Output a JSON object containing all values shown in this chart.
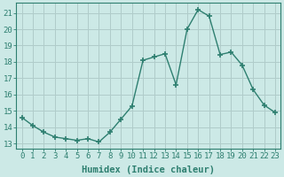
{
  "x": [
    0,
    1,
    2,
    3,
    4,
    5,
    6,
    7,
    8,
    9,
    10,
    11,
    12,
    13,
    14,
    15,
    16,
    17,
    18,
    19,
    20,
    21,
    22,
    23
  ],
  "y": [
    14.6,
    14.1,
    13.7,
    13.4,
    13.3,
    13.2,
    13.3,
    13.1,
    13.7,
    14.5,
    15.3,
    18.1,
    18.3,
    18.5,
    16.6,
    20.0,
    21.2,
    20.8,
    18.45,
    18.6,
    17.8,
    16.3,
    15.35,
    14.9
  ],
  "line_color": "#2e7f70",
  "marker": "+",
  "marker_size": 4,
  "marker_linewidth": 1.2,
  "bg_color": "#cce9e6",
  "grid_color": "#b0ccca",
  "xlabel": "Humidex (Indice chaleur)",
  "xlim": [
    -0.5,
    23.5
  ],
  "ylim": [
    12.7,
    21.6
  ],
  "yticks": [
    13,
    14,
    15,
    16,
    17,
    18,
    19,
    20,
    21
  ],
  "xticks": [
    0,
    1,
    2,
    3,
    4,
    5,
    6,
    7,
    8,
    9,
    10,
    11,
    12,
    13,
    14,
    15,
    16,
    17,
    18,
    19,
    20,
    21,
    22,
    23
  ],
  "xtick_labels": [
    "0",
    "1",
    "2",
    "3",
    "4",
    "5",
    "6",
    "7",
    "8",
    "9",
    "10",
    "11",
    "12",
    "13",
    "14",
    "15",
    "16",
    "17",
    "18",
    "19",
    "20",
    "21",
    "22",
    "23"
  ],
  "spine_color": "#2e7f70",
  "tick_color": "#2e7f70",
  "label_color": "#2e7f70",
  "font_size_label": 7.5,
  "font_size_tick": 6.5,
  "linewidth": 1.0
}
